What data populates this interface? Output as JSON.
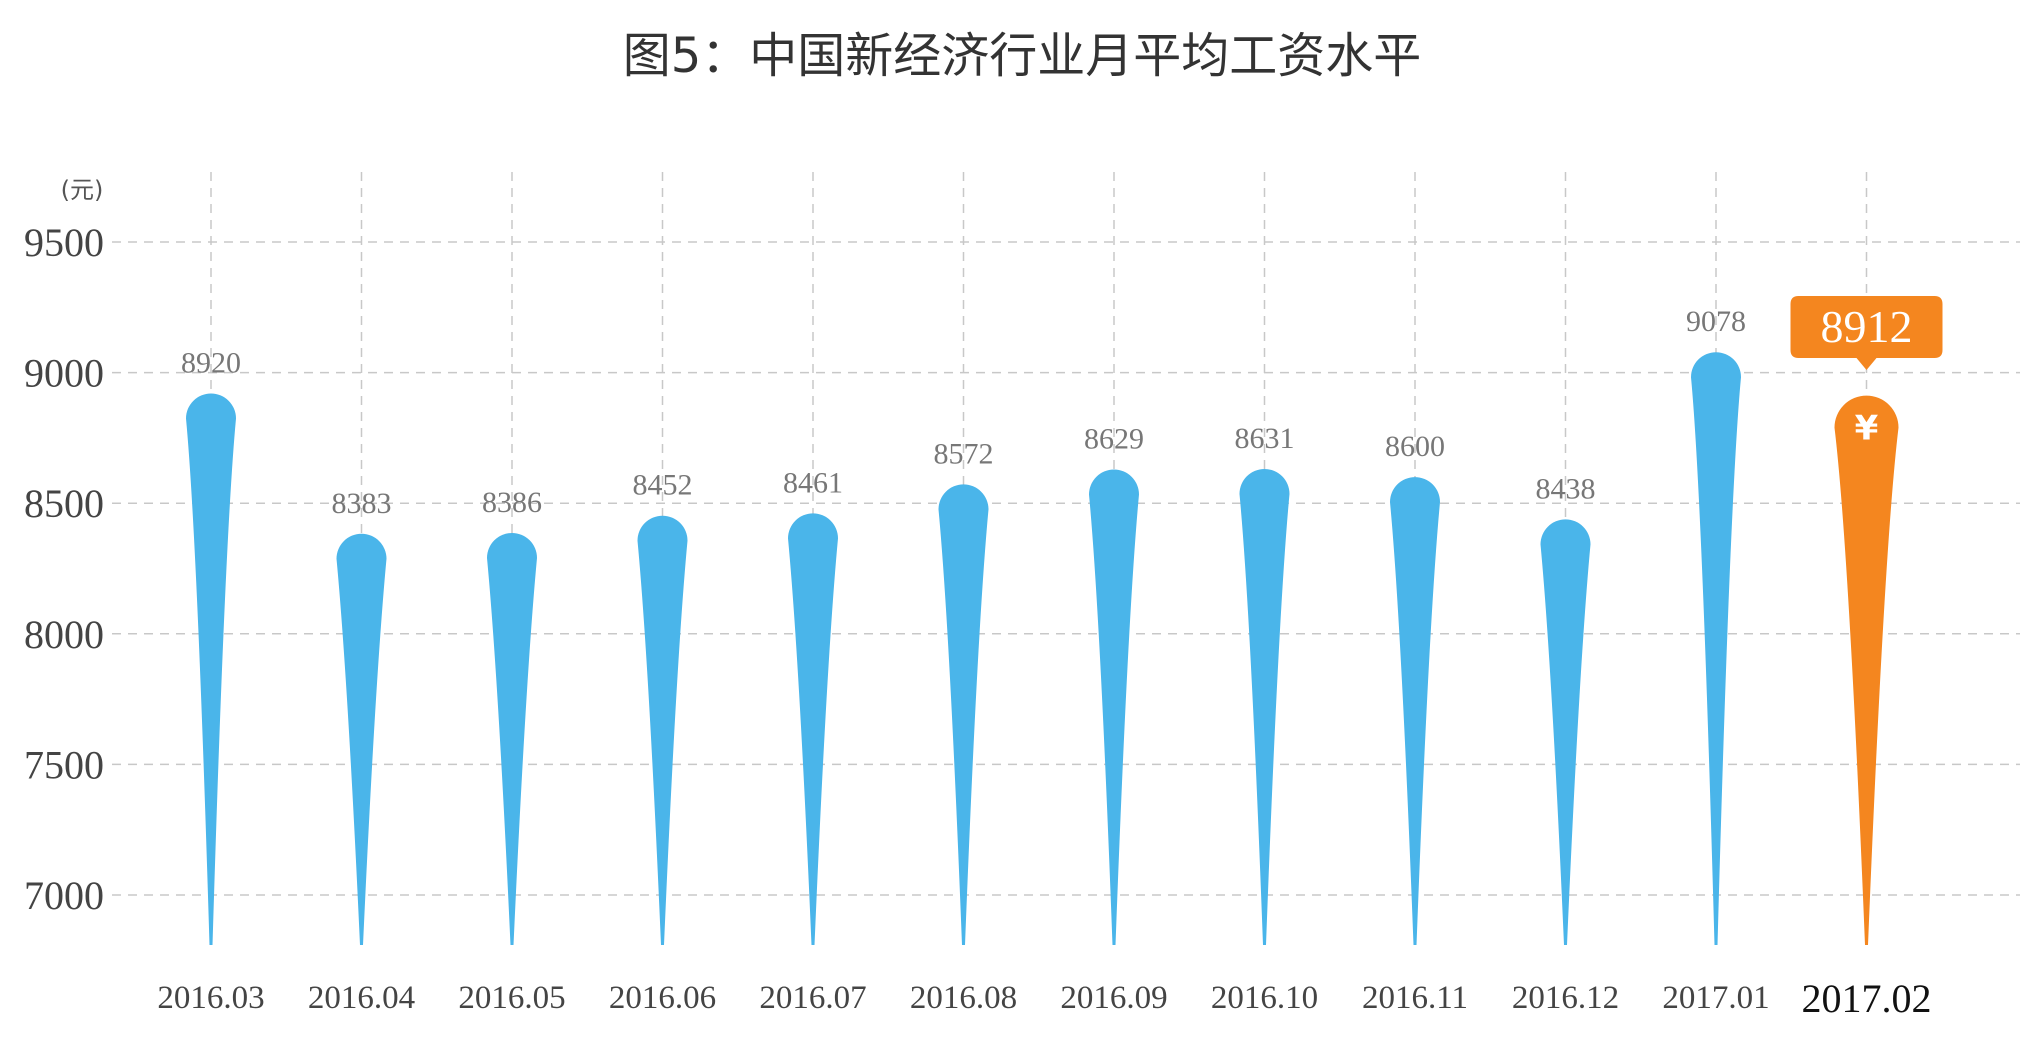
{
  "chart_data": {
    "type": "bar",
    "title": "图5：中国新经济行业月平均工资水平",
    "ylabel": "(元)",
    "xlabel": "",
    "ylim": [
      6800,
      9500
    ],
    "yticks": [
      9500,
      9000,
      8500,
      8000,
      7500,
      7000
    ],
    "grid": true,
    "categories": [
      "2016.03",
      "2016.04",
      "2016.05",
      "2016.06",
      "2016.07",
      "2016.08",
      "2016.09",
      "2016.10",
      "2016.11",
      "2016.12",
      "2017.01",
      "2017.02"
    ],
    "values": [
      8920,
      8383,
      8386,
      8452,
      8461,
      8572,
      8629,
      8631,
      8600,
      8438,
      9078,
      8912
    ],
    "highlight": {
      "category": "2017.02",
      "value": 8912,
      "icon": "¥"
    }
  },
  "colors": {
    "bar": "#4AB5EA",
    "highlight": "#F4861F",
    "grid": "#C8C8C8"
  }
}
